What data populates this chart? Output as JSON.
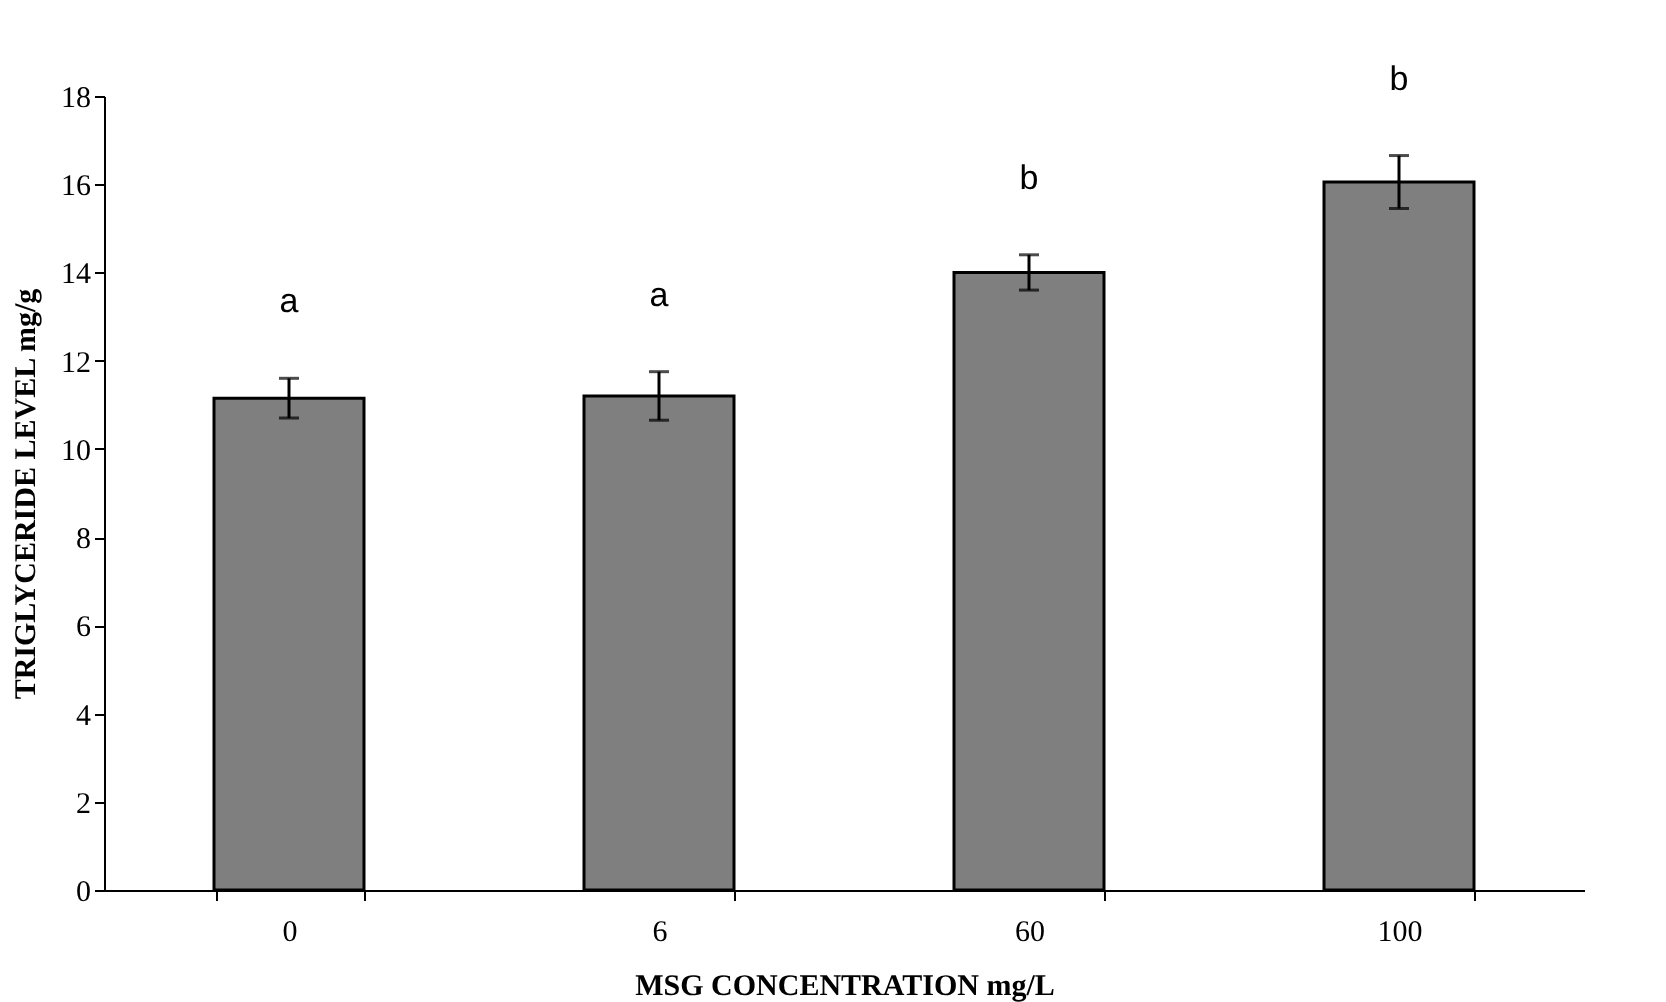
{
  "chart_data": {
    "type": "bar",
    "xlabel": "MSG CONCENTRATION mg/L",
    "ylabel": "TRIGLYCERIDE LEVEL mg/g",
    "categories": [
      "0",
      "6",
      "60",
      "100"
    ],
    "values": [
      11.15,
      11.2,
      14.0,
      16.05
    ],
    "errors": [
      0.45,
      0.55,
      0.4,
      0.6
    ],
    "color": "#7f7f7f",
    "ylim": [
      0,
      18
    ],
    "yticks": [
      0,
      2,
      4,
      6,
      8,
      10,
      12,
      14,
      16,
      18
    ],
    "grid": false,
    "annotations": [
      "a",
      "a",
      "b",
      "b"
    ]
  }
}
